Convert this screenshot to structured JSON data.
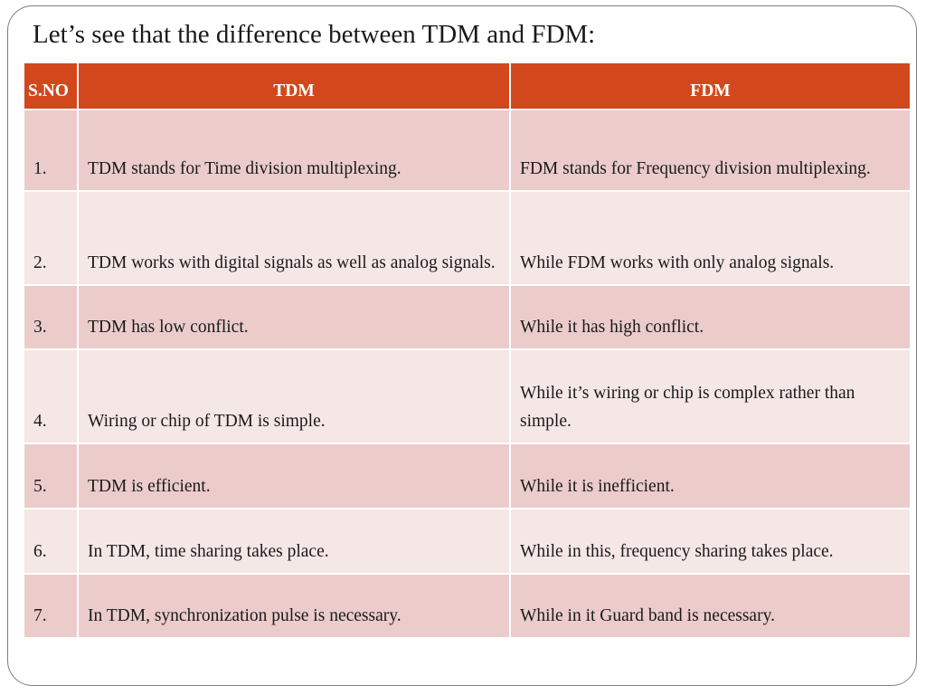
{
  "slide": {
    "title": "Let’s see that the difference between TDM and FDM:"
  },
  "table": {
    "headers": {
      "sno": "S.NO",
      "tdm": "TDM",
      "fdm": "FDM"
    },
    "rows": [
      {
        "sno": "1.",
        "tdm": "TDM stands for Time division multiplexing.",
        "fdm": "FDM stands for Frequency division multiplexing."
      },
      {
        "sno": "2.",
        "tdm": "TDM works with digital signals as well as analog signals.",
        "fdm": "While FDM works with only analog signals."
      },
      {
        "sno": "3.",
        "tdm": "TDM has low conflict.",
        "fdm": "While it has high conflict."
      },
      {
        "sno": "4.",
        "tdm": "Wiring or chip of TDM is simple.",
        "fdm": "While it’s wiring or chip is complex rather than simple."
      },
      {
        "sno": "5.",
        "tdm": "TDM is efficient.",
        "fdm": "While it is inefficient."
      },
      {
        "sno": "6.",
        "tdm": "In TDM, time sharing takes place.",
        "fdm": "While in this, frequency sharing takes place."
      },
      {
        "sno": "7.",
        "tdm": "In TDM, synchronization pulse is necessary.",
        "fdm": "While in it Guard band is necessary."
      }
    ]
  },
  "colors": {
    "header_bg": "#d2481c",
    "row_odd_bg": "#ebcccb",
    "row_even_bg": "#f5e7e6",
    "frame_border": "#7f7f7f"
  }
}
